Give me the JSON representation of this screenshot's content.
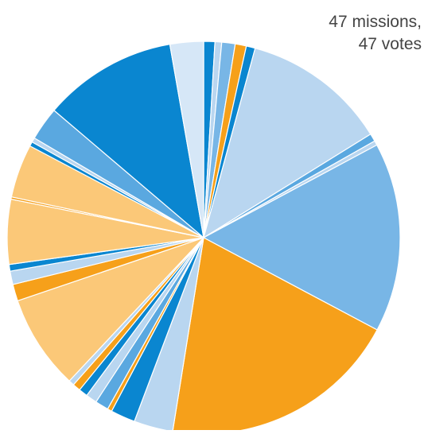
{
  "annotation": {
    "line1": "47 missions,",
    "line2": "47 votes"
  },
  "colors": {
    "dark_blue": "#0a86d0",
    "mid_blue": "#5aa8e0",
    "sky_blue": "#78b6e6",
    "light_blue": "#b9d6f0",
    "pale_blue": "#d6e7f7",
    "orange": "#f6a01a",
    "light_orange": "#fbc878",
    "separator": "#ffffff"
  },
  "chart_data": {
    "type": "pie",
    "title": "",
    "start_angle_deg": 0,
    "direction": "clockwise",
    "slices": [
      {
        "value": 1,
        "color": "dark_blue"
      },
      {
        "value": 0.6,
        "color": "light_blue"
      },
      {
        "value": 1.2,
        "color": "sky_blue"
      },
      {
        "value": 1,
        "color": "orange"
      },
      {
        "value": 0.8,
        "color": "dark_blue"
      },
      {
        "value": 13,
        "color": "light_blue"
      },
      {
        "value": 0.7,
        "color": "mid_blue"
      },
      {
        "value": 0.4,
        "color": "light_blue"
      },
      {
        "value": 17,
        "color": "sky_blue"
      },
      {
        "value": 21.5,
        "color": "orange"
      },
      {
        "value": 3.5,
        "color": "light_blue"
      },
      {
        "value": 2.2,
        "color": "dark_blue"
      },
      {
        "value": 0.4,
        "color": "orange"
      },
      {
        "value": 1.2,
        "color": "mid_blue"
      },
      {
        "value": 1,
        "color": "light_blue"
      },
      {
        "value": 0.8,
        "color": "dark_blue"
      },
      {
        "value": 0.7,
        "color": "orange"
      },
      {
        "value": 0.5,
        "color": "light_blue"
      },
      {
        "value": 8.5,
        "color": "light_orange"
      },
      {
        "value": 1.5,
        "color": "orange"
      },
      {
        "value": 1.2,
        "color": "light_blue"
      },
      {
        "value": 0.6,
        "color": "dark_blue"
      },
      {
        "value": 5.8,
        "color": "light_orange"
      },
      {
        "value": 0.2,
        "color": "orange"
      },
      {
        "value": 4.8,
        "color": "light_orange"
      },
      {
        "value": 0.4,
        "color": "dark_blue"
      },
      {
        "value": 0.4,
        "color": "light_blue"
      },
      {
        "value": 3,
        "color": "mid_blue"
      },
      {
        "value": 12,
        "color": "dark_blue"
      },
      {
        "value": 3,
        "color": "pale_blue"
      }
    ]
  }
}
